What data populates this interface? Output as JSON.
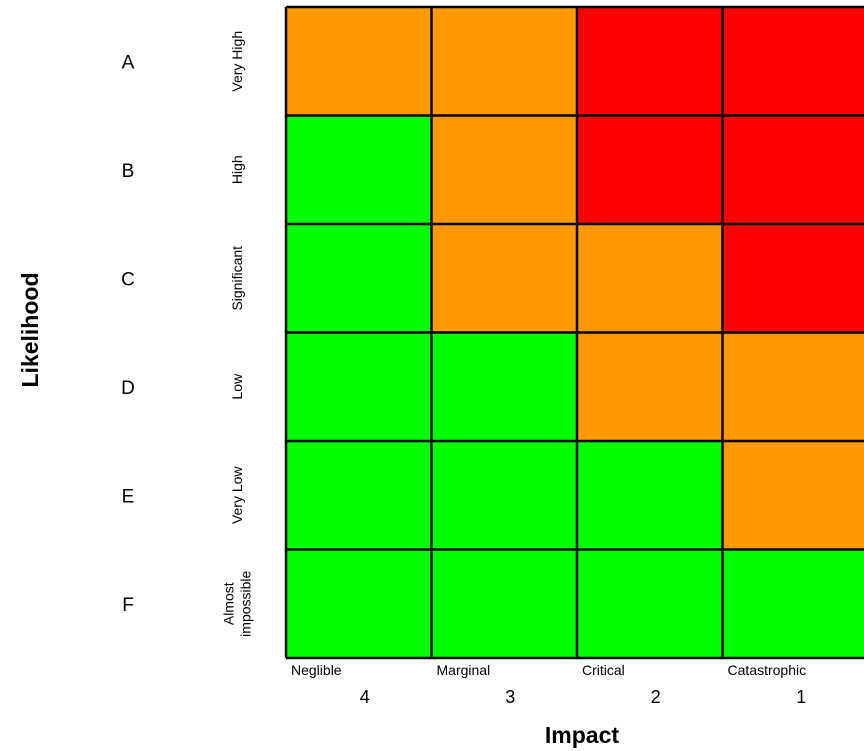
{
  "colors": {
    "low": "#00ff00",
    "medium": "#ff9900",
    "high": "#ff0000",
    "grid": "#000000"
  },
  "chart_data": {
    "type": "heatmap",
    "xlabel": "Impact",
    "ylabel": "Likelihood",
    "rows": [
      {
        "letter": "A",
        "label": "Very High"
      },
      {
        "letter": "B",
        "label": "High"
      },
      {
        "letter": "C",
        "label": "Significant"
      },
      {
        "letter": "D",
        "label": "Low"
      },
      {
        "letter": "E",
        "label": "Very Low"
      },
      {
        "letter": "F",
        "label": "Almost impossible",
        "label_lines": [
          "Almost",
          "impossible"
        ]
      }
    ],
    "columns": [
      {
        "name": "Neglible",
        "number": "4"
      },
      {
        "name": "Marginal",
        "number": "3"
      },
      {
        "name": "Critical",
        "number": "2"
      },
      {
        "name": "Catastrophic",
        "number": "1"
      }
    ],
    "cells": [
      [
        "medium",
        "medium",
        "high",
        "high"
      ],
      [
        "low",
        "medium",
        "high",
        "high"
      ],
      [
        "low",
        "medium",
        "medium",
        "high"
      ],
      [
        "low",
        "low",
        "medium",
        "medium"
      ],
      [
        "low",
        "low",
        "low",
        "medium"
      ],
      [
        "low",
        "low",
        "low",
        "low"
      ]
    ]
  }
}
